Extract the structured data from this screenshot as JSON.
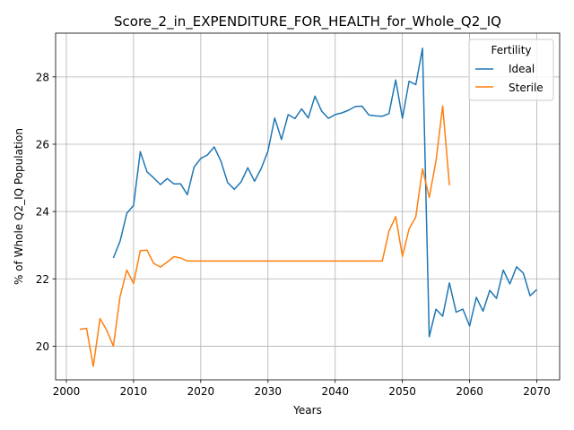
{
  "chart_data": {
    "type": "line",
    "title": "Score_2_in_EXPENDITURE_FOR_HEALTH_for_Whole_Q2_IQ",
    "xlabel": "Years",
    "ylabel": "% of Whole Q2_IQ Population",
    "xlim": [
      1998.4,
      2073.4
    ],
    "ylim": [
      19.0,
      29.3
    ],
    "xticks": [
      2000,
      2010,
      2020,
      2030,
      2040,
      2050,
      2060,
      2070
    ],
    "yticks": [
      20,
      22,
      24,
      26,
      28
    ],
    "grid": true,
    "legend": {
      "title": "Fertility",
      "position": "top-right"
    },
    "series": [
      {
        "name": "Ideal",
        "color": "#1f77b4",
        "x": [
          2007,
          2008,
          2009,
          2010,
          2011,
          2012,
          2013,
          2014,
          2015,
          2016,
          2017,
          2018,
          2019,
          2020,
          2021,
          2022,
          2023,
          2024,
          2025,
          2026,
          2027,
          2028,
          2029,
          2030,
          2031,
          2032,
          2033,
          2034,
          2035,
          2036,
          2037,
          2038,
          2039,
          2040,
          2041,
          2042,
          2043,
          2044,
          2045,
          2046,
          2047,
          2048,
          2049,
          2050,
          2051,
          2052,
          2053,
          2054,
          2055,
          2056,
          2057,
          2058,
          2059,
          2060,
          2061,
          2062,
          2063,
          2064,
          2065,
          2066,
          2067,
          2068,
          2069,
          2070
        ],
        "values": [
          22.62,
          23.12,
          23.95,
          24.18,
          25.78,
          25.18,
          25.0,
          24.8,
          24.98,
          24.82,
          24.82,
          24.5,
          25.32,
          25.58,
          25.68,
          25.92,
          25.5,
          24.86,
          24.66,
          24.88,
          25.3,
          24.9,
          25.28,
          25.8,
          26.78,
          26.14,
          26.88,
          26.76,
          27.05,
          26.78,
          27.43,
          26.98,
          26.77,
          26.88,
          26.93,
          27.01,
          27.12,
          27.13,
          26.87,
          26.84,
          26.83,
          26.91,
          27.91,
          26.77,
          27.87,
          27.77,
          28.85,
          20.28,
          21.1,
          20.89,
          21.88,
          21.01,
          21.1,
          20.6,
          21.45,
          21.04,
          21.66,
          21.42,
          22.26,
          21.85,
          22.36,
          22.17,
          21.5,
          21.68
        ]
      },
      {
        "name": "Sterile",
        "color": "#ff7f0e",
        "x": [
          2002,
          2003,
          2004,
          2005,
          2006,
          2007,
          2008,
          2009,
          2010,
          2011,
          2012,
          2013,
          2014,
          2015,
          2016,
          2017,
          2018,
          2019,
          2020,
          2021,
          2022,
          2023,
          2024,
          2025,
          2026,
          2027,
          2028,
          2029,
          2030,
          2031,
          2032,
          2033,
          2034,
          2035,
          2036,
          2037,
          2038,
          2039,
          2040,
          2041,
          2042,
          2043,
          2044,
          2045,
          2046,
          2047,
          2048,
          2049,
          2050,
          2051,
          2052,
          2053,
          2054,
          2055,
          2056,
          2057
        ],
        "values": [
          20.5,
          20.53,
          19.4,
          20.82,
          20.48,
          20.0,
          21.48,
          22.26,
          21.86,
          22.84,
          22.85,
          22.46,
          22.35,
          22.5,
          22.66,
          22.62,
          22.53,
          22.53,
          22.53,
          22.53,
          22.53,
          22.53,
          22.53,
          22.53,
          22.53,
          22.53,
          22.53,
          22.53,
          22.53,
          22.53,
          22.53,
          22.53,
          22.53,
          22.53,
          22.53,
          22.53,
          22.53,
          22.53,
          22.53,
          22.53,
          22.53,
          22.53,
          22.53,
          22.53,
          22.53,
          22.53,
          23.42,
          23.85,
          22.67,
          23.48,
          23.84,
          25.27,
          24.42,
          25.5,
          27.14,
          24.78
        ]
      }
    ]
  }
}
